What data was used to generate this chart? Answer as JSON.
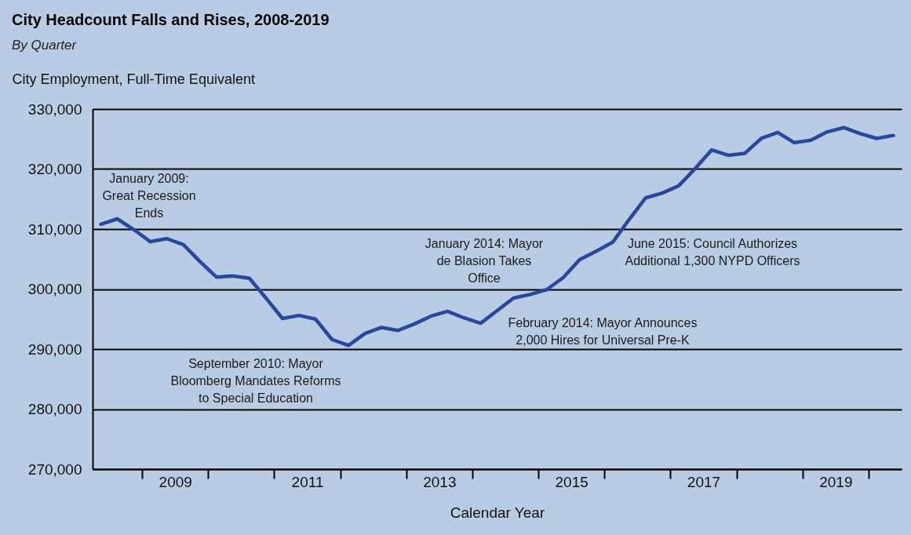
{
  "chart_data": {
    "type": "line",
    "title": "City Headcount Falls and Rises, 2008-2019",
    "subtitle": "By Quarter",
    "ylabel": "City Employment, Full-Time Equivalent",
    "xlabel": "Calendar Year",
    "x": [
      2008.375,
      2008.625,
      2008.875,
      2009.125,
      2009.375,
      2009.625,
      2009.875,
      2010.125,
      2010.375,
      2010.625,
      2010.875,
      2011.125,
      2011.375,
      2011.625,
      2011.875,
      2012.125,
      2012.375,
      2012.625,
      2012.875,
      2013.125,
      2013.375,
      2013.625,
      2013.875,
      2014.125,
      2014.375,
      2014.625,
      2014.875,
      2015.125,
      2015.375,
      2015.625,
      2015.875,
      2016.125,
      2016.375,
      2016.625,
      2016.875,
      2017.125,
      2017.375,
      2017.625,
      2017.875,
      2018.125,
      2018.375,
      2018.625,
      2018.875,
      2019.125,
      2019.375,
      2019.625,
      2019.875,
      2020.125,
      2020.375
    ],
    "series": [
      {
        "color": "#2a47a0",
        "values": [
          310800,
          311700,
          309900,
          307900,
          308400,
          307400,
          304600,
          302000,
          302200,
          301800,
          298500,
          295100,
          295600,
          295000,
          291600,
          290600,
          292600,
          293600,
          293100,
          294200,
          295500,
          296300,
          295200,
          294300,
          296400,
          298500,
          299100,
          299900,
          301900,
          304900,
          306300,
          307800,
          311600,
          315200,
          316000,
          317200,
          320100,
          323200,
          322300,
          322600,
          325100,
          326100,
          324400,
          324800,
          326200,
          326900,
          325900,
          325100,
          325600
        ]
      }
    ],
    "xlim": [
      2008.25,
      2020.5
    ],
    "xticks": [
      {
        "value": 2009,
        "label": null
      },
      {
        "value": 2009.5,
        "label": "2009"
      },
      {
        "value": 2010,
        "label": null
      },
      {
        "value": 2011,
        "label": null
      },
      {
        "value": 2011.5,
        "label": "2011"
      },
      {
        "value": 2012,
        "label": null
      },
      {
        "value": 2013,
        "label": null
      },
      {
        "value": 2013.5,
        "label": "2013"
      },
      {
        "value": 2014,
        "label": null
      },
      {
        "value": 2015,
        "label": null
      },
      {
        "value": 2015.5,
        "label": "2015"
      },
      {
        "value": 2016,
        "label": null
      },
      {
        "value": 2017,
        "label": null
      },
      {
        "value": 2017.5,
        "label": "2017"
      },
      {
        "value": 2018,
        "label": null
      },
      {
        "value": 2019,
        "label": null
      },
      {
        "value": 2019.5,
        "label": "2019"
      },
      {
        "value": 2020,
        "label": null
      }
    ],
    "ylim": [
      270000,
      330000
    ],
    "yticks": [
      {
        "value": 270000,
        "label": "270,000"
      },
      {
        "value": 280000,
        "label": "280,000"
      },
      {
        "value": 290000,
        "label": "290,000"
      },
      {
        "value": 300000,
        "label": "300,000"
      },
      {
        "value": 310000,
        "label": "310,000"
      },
      {
        "value": 320000,
        "label": "320,000"
      },
      {
        "value": 330000,
        "label": "330,000"
      }
    ],
    "grid": "y",
    "legend": false,
    "marker": "none",
    "line_style": "solid",
    "annotations": [
      "January 2009:\nGreat Recession\nEnds",
      "September 2010: Mayor\nBloomberg Mandates Reforms\nto Special Education",
      "January 2014: Mayor\nde Blasion Takes\nOffice",
      "February 2014: Mayor Announces\n2,000 Hires for Universal Pre-K",
      "June 2015: Council Authorizes\nAdditional 1,300 NYPD Officers"
    ]
  }
}
